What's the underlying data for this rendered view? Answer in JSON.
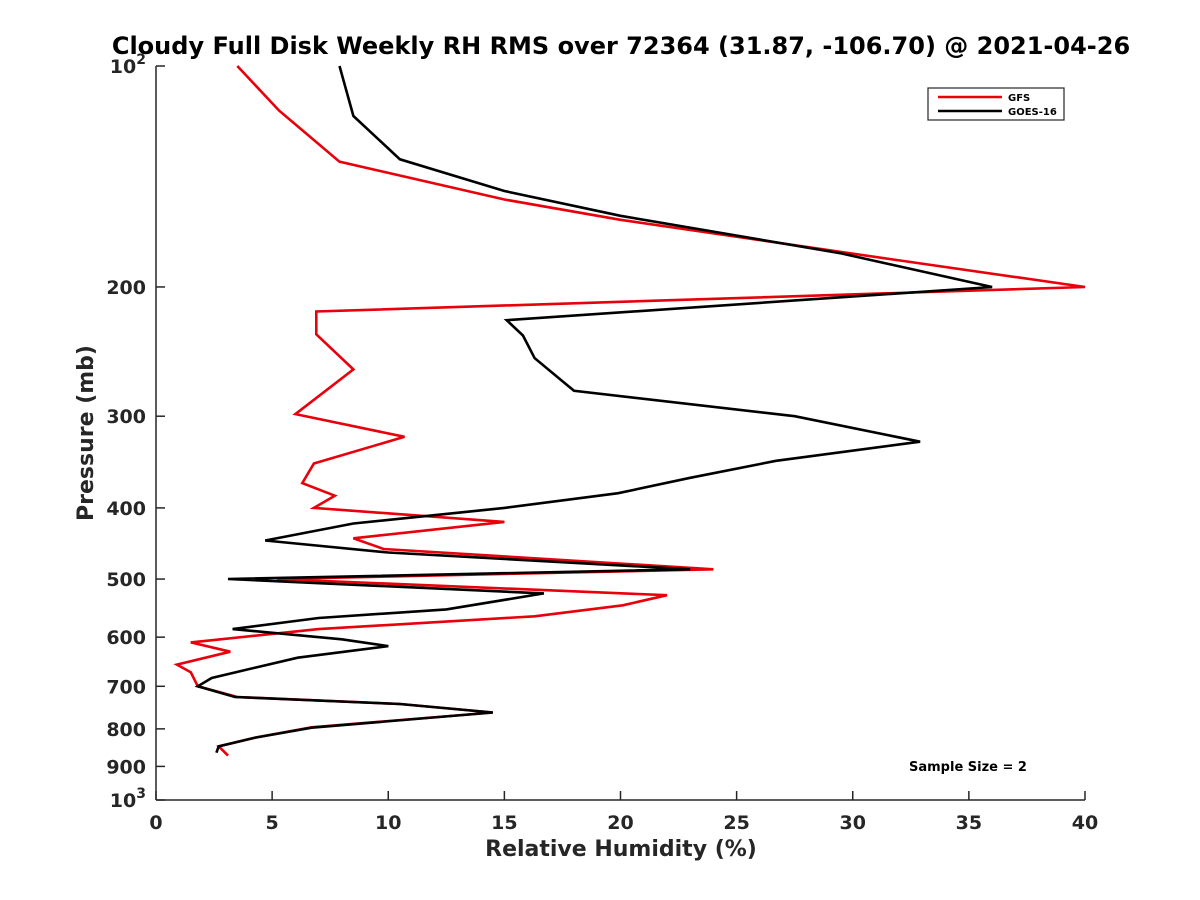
{
  "chart_data": {
    "type": "line",
    "title": "Cloudy Full Disk Weekly RH RMS over 72364 (31.87, -106.70) @ 2021-04-26",
    "xlabel": "Relative Humidity (%)",
    "ylabel": "Pressure (mb)",
    "xlim": [
      0,
      40
    ],
    "ylim": [
      100,
      1000
    ],
    "y_scale": "log",
    "y_reversed": true,
    "x_ticks": [
      "0",
      "5",
      "10",
      "15",
      "20",
      "25",
      "30",
      "35",
      "40"
    ],
    "y_ticks": [
      {
        "value": 100,
        "label": "10",
        "sup": "2"
      },
      {
        "value": 200,
        "label": "200",
        "sup": ""
      },
      {
        "value": 300,
        "label": "300",
        "sup": ""
      },
      {
        "value": 400,
        "label": "400",
        "sup": ""
      },
      {
        "value": 500,
        "label": "500",
        "sup": ""
      },
      {
        "value": 600,
        "label": "600",
        "sup": ""
      },
      {
        "value": 700,
        "label": "700",
        "sup": ""
      },
      {
        "value": 800,
        "label": "800",
        "sup": ""
      },
      {
        "value": 900,
        "label": "900",
        "sup": ""
      },
      {
        "value": 1000,
        "label": "10",
        "sup": "3"
      }
    ],
    "grid": false,
    "legend_position": "top-right",
    "annotation": "Sample Size = 2",
    "series": [
      {
        "name": "GFS",
        "color": "#e8000b",
        "points": [
          [
            3.5,
            100
          ],
          [
            5.3,
            115
          ],
          [
            7.9,
            135
          ],
          [
            15,
            152
          ],
          [
            20,
            162
          ],
          [
            32,
            184
          ],
          [
            40,
            200
          ],
          [
            6.9,
            216
          ],
          [
            6.9,
            232
          ],
          [
            8.5,
            259
          ],
          [
            6.0,
            298
          ],
          [
            10.7,
            320
          ],
          [
            6.8,
            348
          ],
          [
            6.3,
            370
          ],
          [
            7.7,
            385
          ],
          [
            6.8,
            400
          ],
          [
            15,
            418
          ],
          [
            8.5,
            440
          ],
          [
            9.8,
            455
          ],
          [
            24,
            485
          ],
          [
            5.2,
            500
          ],
          [
            22,
            526
          ],
          [
            20.1,
            543
          ],
          [
            16.3,
            562
          ],
          [
            7.0,
            585
          ],
          [
            1.5,
            610
          ],
          [
            3.2,
            628
          ],
          [
            0.9,
            654
          ],
          [
            1.5,
            670
          ],
          [
            1.8,
            700
          ],
          [
            3.5,
            724
          ],
          [
            10.5,
            740
          ],
          [
            14.5,
            760
          ],
          [
            6.7,
            796
          ],
          [
            4.3,
            822
          ],
          [
            2.7,
            845
          ],
          [
            3.1,
            870
          ]
        ]
      },
      {
        "name": "GOES-16",
        "color": "#000000",
        "points": [
          [
            7.9,
            100
          ],
          [
            8.5,
            117
          ],
          [
            10.5,
            134
          ],
          [
            15,
            148
          ],
          [
            20,
            160
          ],
          [
            29.5,
            180
          ],
          [
            36,
            200
          ],
          [
            15.1,
            222
          ],
          [
            15.8,
            233
          ],
          [
            16.3,
            250
          ],
          [
            18,
            277
          ],
          [
            27.5,
            300
          ],
          [
            32.9,
            325
          ],
          [
            26.7,
            345
          ],
          [
            23,
            364
          ],
          [
            19.9,
            382
          ],
          [
            15,
            400
          ],
          [
            8.5,
            420
          ],
          [
            4.7,
            443
          ],
          [
            10,
            460
          ],
          [
            23,
            485
          ],
          [
            3.1,
            500
          ],
          [
            16.7,
            523
          ],
          [
            12.5,
            550
          ],
          [
            7.0,
            565
          ],
          [
            3.3,
            585
          ],
          [
            8.0,
            604
          ],
          [
            10.0,
            617
          ],
          [
            6.1,
            640
          ],
          [
            4.3,
            660
          ],
          [
            2.4,
            682
          ],
          [
            1.8,
            700
          ],
          [
            3.4,
            724
          ],
          [
            10.5,
            740
          ],
          [
            14.5,
            760
          ],
          [
            6.7,
            797
          ],
          [
            4.3,
            822
          ],
          [
            2.7,
            845
          ],
          [
            2.6,
            862
          ]
        ]
      }
    ]
  }
}
